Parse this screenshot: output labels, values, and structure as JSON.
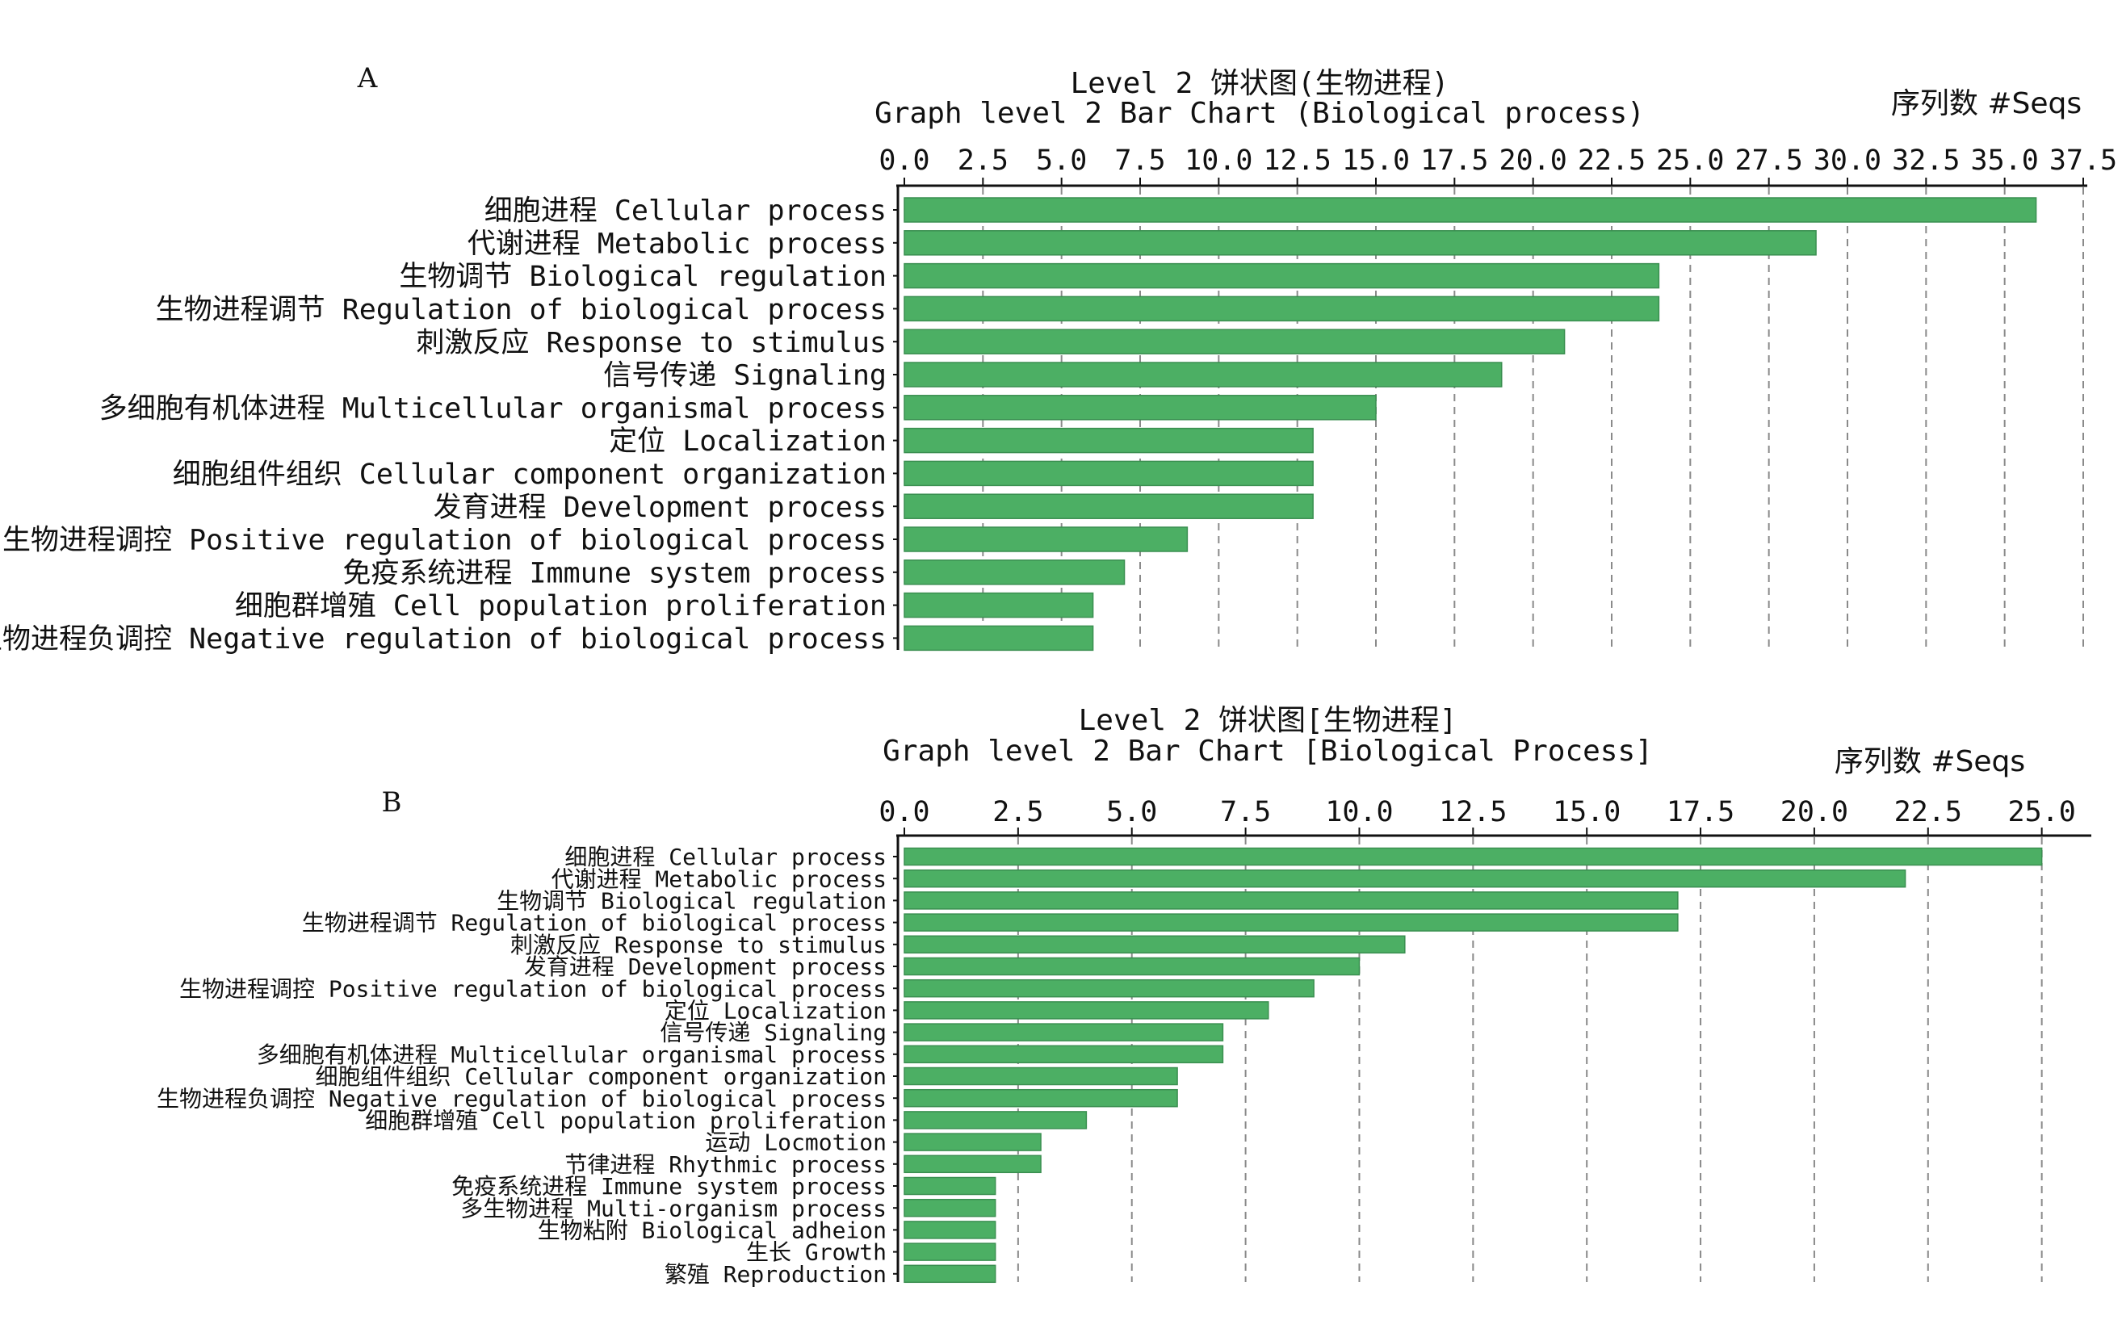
{
  "chart_data": [
    {
      "panel_label": "A",
      "type": "bar",
      "orientation": "horizontal",
      "title": "Level 2 饼状图(生物进程)",
      "subtitle": "Graph level 2 Bar Chart (Biological process)",
      "xlabel": "序列数 #Seqs",
      "xlim": [
        0,
        37.5
      ],
      "ticks": [
        "0.0",
        "2.5",
        "5.0",
        "7.5",
        "10.0",
        "12.5",
        "15.0",
        "17.5",
        "20.0",
        "22.5",
        "25.0",
        "27.5",
        "30.0",
        "32.5",
        "35.0",
        "37.5"
      ],
      "grid": true,
      "bar_color": "#4caf64",
      "categories": [
        "细胞进程 Cellular process",
        "代谢进程 Metabolic process",
        "生物调节 Biological regulation",
        "生物进程调节 Regulation of biological process",
        "刺激反应 Response to stimulus",
        "信号传递 Signaling",
        "多细胞有机体进程 Multicellular organismal process",
        "定位 Localization",
        "细胞组件组织 Cellular component organization",
        "发育进程 Development process",
        "生物进程调控 Positive regulation of biological process",
        "免疫系统进程 Immune system process",
        "细胞群增殖 Cell population proliferation",
        "生物进程负调控 Negative regulation of biological process"
      ],
      "values": [
        36,
        29,
        24,
        24,
        21,
        19,
        15,
        13,
        13,
        13,
        9,
        7,
        6,
        6
      ]
    },
    {
      "panel_label": "B",
      "type": "bar",
      "orientation": "horizontal",
      "title": "Level 2 饼状图[生物进程]",
      "subtitle": "Graph level 2 Bar Chart [Biological Process]",
      "xlabel": "序列数 #Seqs",
      "xlim": [
        0,
        26
      ],
      "ticks": [
        "0.0",
        "2.5",
        "5.0",
        "7.5",
        "10.0",
        "12.5",
        "15.0",
        "17.5",
        "20.0",
        "22.5",
        "25.0"
      ],
      "grid": true,
      "bar_color": "#4caf64",
      "categories": [
        "细胞进程 Cellular process",
        "代谢进程 Metabolic process",
        "生物调节 Biological regulation",
        "生物进程调节 Regulation of biological process",
        "刺激反应 Response to stimulus",
        "发育进程 Development process",
        "生物进程调控 Positive regulation of biological process",
        "定位 Localization",
        "信号传递 Signaling",
        "多细胞有机体进程 Multicellular organismal process",
        "细胞组件组织 Cellular component organization",
        "生物进程负调控 Negative regulation of biological process",
        "细胞群增殖 Cell population proliferation",
        "运动 Locmotion",
        "节律进程 Rhythmic process",
        "免疫系统进程 Immune system process",
        "多生物进程 Multi-organism process",
        "生物粘附 Biological adheion",
        "生长 Growth",
        "繁殖 Reproduction"
      ],
      "values": [
        25,
        22,
        17,
        17,
        11,
        10,
        9,
        8,
        7,
        7,
        6,
        6,
        4,
        3,
        3,
        2,
        2,
        2,
        2,
        2
      ]
    }
  ]
}
